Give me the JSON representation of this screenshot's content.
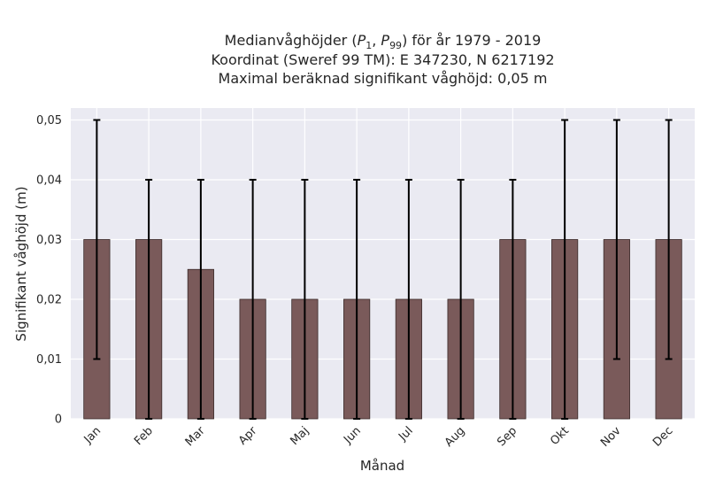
{
  "chart_data": {
    "type": "bar",
    "title_lines": [
      "Medianvåghöjder (P1, P99) för år 1979 - 2019",
      "Koordinat (Sweref 99 TM): E 347230, N 6217192",
      "Maximal beräknad signifikant våghöjd: 0,05 m"
    ],
    "xlabel": "Månad",
    "ylabel": "Signifikant våghöjd (m)",
    "categories": [
      "Jan",
      "Feb",
      "Mar",
      "Apr",
      "Maj",
      "Jun",
      "Jul",
      "Aug",
      "Sep",
      "Okt",
      "Nov",
      "Dec"
    ],
    "values": [
      0.03,
      0.03,
      0.025,
      0.02,
      0.02,
      0.02,
      0.02,
      0.02,
      0.03,
      0.03,
      0.03,
      0.03
    ],
    "error_low": [
      0.01,
      0,
      0,
      0,
      0,
      0,
      0,
      0,
      0,
      0,
      0.01,
      0.01
    ],
    "error_high": [
      0.05,
      0.04,
      0.04,
      0.04,
      0.04,
      0.04,
      0.04,
      0.04,
      0.04,
      0.05,
      0.05,
      0.05
    ],
    "ylim": [
      0,
      0.052
    ],
    "yticks": [
      0,
      0.01,
      0.02,
      0.03,
      0.04,
      0.05
    ],
    "ytick_labels": [
      "0",
      "0,01",
      "0,02",
      "0,03",
      "0,04",
      "0,05"
    ],
    "grid": true,
    "colors": {
      "bar": "#7a5a5a",
      "bar_edge": "#3a2a2a",
      "error": "#000000",
      "plot_bg": "#eaeaf2",
      "grid": "#ffffff"
    }
  }
}
